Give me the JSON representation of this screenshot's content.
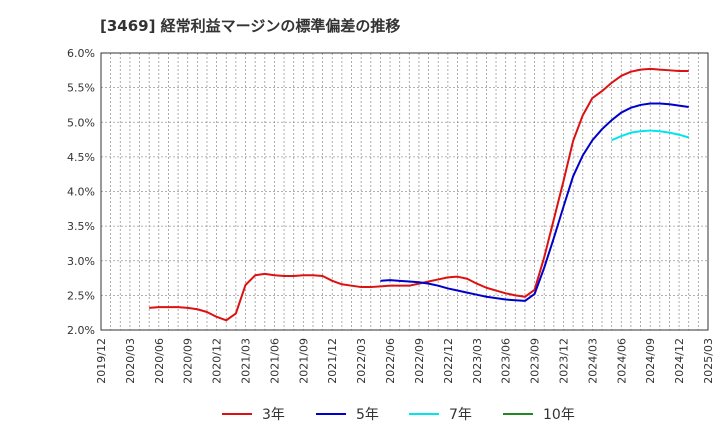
{
  "chart_data": {
    "type": "line",
    "title": "[3469]  経常利益マージンの標準偏差の推移",
    "xlabel": "",
    "ylabel": "",
    "x_ticks": [
      "2019/12",
      "2020/03",
      "2020/06",
      "2020/09",
      "2020/12",
      "2021/03",
      "2021/06",
      "2021/09",
      "2021/12",
      "2022/03",
      "2022/06",
      "2022/09",
      "2022/12",
      "2023/03",
      "2023/06",
      "2023/09",
      "2023/12",
      "2024/03",
      "2024/06",
      "2024/09",
      "2024/12",
      "2025/03"
    ],
    "y_ticks": [
      "2.0%",
      "2.5%",
      "3.0%",
      "3.5%",
      "4.0%",
      "4.5%",
      "5.0%",
      "5.5%",
      "6.0%"
    ],
    "ylim": [
      2.0,
      6.0
    ],
    "grid": true,
    "legend_position": "bottom",
    "series": [
      {
        "name": "3年",
        "color": "#dd1111",
        "points": [
          [
            "2020/05",
            2.32
          ],
          [
            "2020/06",
            2.33
          ],
          [
            "2020/07",
            2.33
          ],
          [
            "2020/08",
            2.33
          ],
          [
            "2020/09",
            2.32
          ],
          [
            "2020/10",
            2.3
          ],
          [
            "2020/11",
            2.26
          ],
          [
            "2020/12",
            2.19
          ],
          [
            "2021/01",
            2.14
          ],
          [
            "2021/02",
            2.24
          ],
          [
            "2021/03",
            2.65
          ],
          [
            "2021/04",
            2.79
          ],
          [
            "2021/05",
            2.81
          ],
          [
            "2021/06",
            2.79
          ],
          [
            "2021/07",
            2.78
          ],
          [
            "2021/08",
            2.78
          ],
          [
            "2021/09",
            2.79
          ],
          [
            "2021/10",
            2.79
          ],
          [
            "2021/11",
            2.78
          ],
          [
            "2021/12",
            2.71
          ],
          [
            "2022/01",
            2.66
          ],
          [
            "2022/02",
            2.64
          ],
          [
            "2022/03",
            2.62
          ],
          [
            "2022/04",
            2.62
          ],
          [
            "2022/05",
            2.63
          ],
          [
            "2022/06",
            2.64
          ],
          [
            "2022/07",
            2.64
          ],
          [
            "2022/08",
            2.64
          ],
          [
            "2022/09",
            2.67
          ],
          [
            "2022/10",
            2.7
          ],
          [
            "2022/11",
            2.73
          ],
          [
            "2022/12",
            2.76
          ],
          [
            "2023/01",
            2.77
          ],
          [
            "2023/02",
            2.74
          ],
          [
            "2023/03",
            2.67
          ],
          [
            "2023/04",
            2.61
          ],
          [
            "2023/05",
            2.57
          ],
          [
            "2023/06",
            2.53
          ],
          [
            "2023/07",
            2.5
          ],
          [
            "2023/08",
            2.48
          ],
          [
            "2023/09",
            2.58
          ],
          [
            "2023/10",
            3.05
          ],
          [
            "2023/11",
            3.6
          ],
          [
            "2023/12",
            4.15
          ],
          [
            "2024/01",
            4.73
          ],
          [
            "2024/02",
            5.1
          ],
          [
            "2024/03",
            5.35
          ],
          [
            "2024/04",
            5.45
          ],
          [
            "2024/05",
            5.57
          ],
          [
            "2024/06",
            5.67
          ],
          [
            "2024/07",
            5.73
          ],
          [
            "2024/08",
            5.76
          ],
          [
            "2024/09",
            5.77
          ],
          [
            "2024/10",
            5.76
          ],
          [
            "2024/11",
            5.75
          ],
          [
            "2024/12",
            5.74
          ],
          [
            "2025/01",
            5.74
          ]
        ]
      },
      {
        "name": "5年",
        "color": "#0000cc",
        "points": [
          [
            "2022/05",
            2.71
          ],
          [
            "2022/06",
            2.72
          ],
          [
            "2022/07",
            2.71
          ],
          [
            "2022/08",
            2.7
          ],
          [
            "2022/09",
            2.69
          ],
          [
            "2022/10",
            2.67
          ],
          [
            "2022/11",
            2.64
          ],
          [
            "2022/12",
            2.6
          ],
          [
            "2023/01",
            2.57
          ],
          [
            "2023/02",
            2.54
          ],
          [
            "2023/03",
            2.51
          ],
          [
            "2023/04",
            2.48
          ],
          [
            "2023/05",
            2.46
          ],
          [
            "2023/06",
            2.44
          ],
          [
            "2023/07",
            2.43
          ],
          [
            "2023/08",
            2.42
          ],
          [
            "2023/09",
            2.52
          ],
          [
            "2023/10",
            2.9
          ],
          [
            "2023/11",
            3.33
          ],
          [
            "2023/12",
            3.78
          ],
          [
            "2024/01",
            4.22
          ],
          [
            "2024/02",
            4.52
          ],
          [
            "2024/03",
            4.74
          ],
          [
            "2024/04",
            4.9
          ],
          [
            "2024/05",
            5.03
          ],
          [
            "2024/06",
            5.14
          ],
          [
            "2024/07",
            5.21
          ],
          [
            "2024/08",
            5.25
          ],
          [
            "2024/09",
            5.27
          ],
          [
            "2024/10",
            5.27
          ],
          [
            "2024/11",
            5.26
          ],
          [
            "2024/12",
            5.24
          ],
          [
            "2025/01",
            5.22
          ]
        ]
      },
      {
        "name": "7年",
        "color": "#00e5ee",
        "points": [
          [
            "2024/05",
            4.74
          ],
          [
            "2024/06",
            4.8
          ],
          [
            "2024/07",
            4.85
          ],
          [
            "2024/08",
            4.87
          ],
          [
            "2024/09",
            4.88
          ],
          [
            "2024/10",
            4.87
          ],
          [
            "2024/11",
            4.85
          ],
          [
            "2024/12",
            4.82
          ],
          [
            "2025/01",
            4.78
          ]
        ]
      },
      {
        "name": "10年",
        "color": "#228822",
        "points": []
      }
    ]
  }
}
